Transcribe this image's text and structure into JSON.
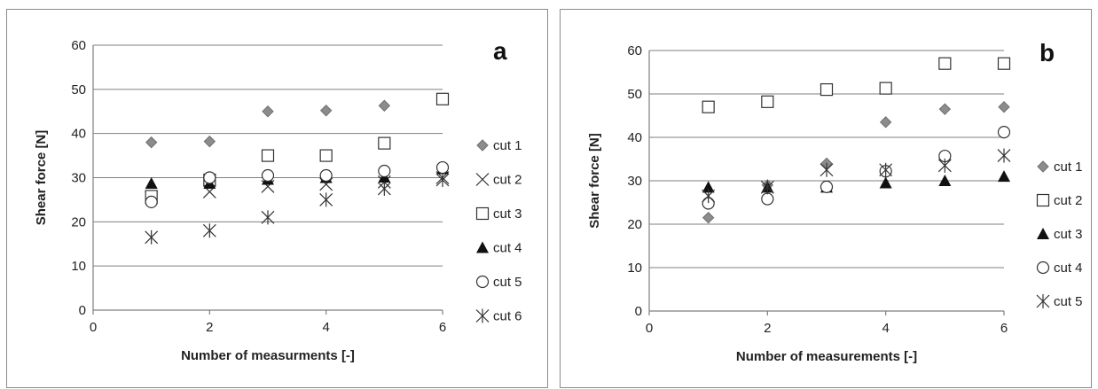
{
  "chart_data": [
    {
      "type": "scatter",
      "panel_label": "a",
      "xlabel": "Number of measurments [-]",
      "ylabel": "Shear force [N]",
      "xlim": [
        0,
        6
      ],
      "ylim": [
        0,
        60
      ],
      "xticks": [
        0,
        2,
        4,
        6
      ],
      "yticks": [
        0,
        10,
        20,
        30,
        40,
        50,
        60
      ],
      "grid": "horizontal",
      "legend_position": "right",
      "x": [
        1,
        2,
        3,
        4,
        5,
        6
      ],
      "series": [
        {
          "name": "cut 1",
          "marker": "diamond-filled",
          "color": "#8c8c8c",
          "values": [
            38,
            38.2,
            45,
            45.2,
            46.3,
            null
          ]
        },
        {
          "name": "cut 2",
          "marker": "x",
          "color": "#333333",
          "values": [
            25.5,
            26.8,
            28,
            28.5,
            29,
            30
          ]
        },
        {
          "name": "cut 3",
          "marker": "square-open",
          "color": "#333333",
          "values": [
            25.8,
            29.5,
            35,
            35,
            37.8,
            47.8
          ]
        },
        {
          "name": "cut 4",
          "marker": "triangle-filled",
          "color": "#111111",
          "values": [
            28.7,
            28.7,
            29.6,
            30,
            30.1,
            32
          ]
        },
        {
          "name": "cut 5",
          "marker": "circle-open",
          "color": "#333333",
          "values": [
            24.5,
            30,
            30.5,
            30.5,
            31.5,
            32.3
          ]
        },
        {
          "name": "cut 6",
          "marker": "asterisk",
          "color": "#333333",
          "values": [
            16.5,
            18,
            21,
            25,
            27.5,
            29.5
          ]
        }
      ]
    },
    {
      "type": "scatter",
      "panel_label": "b",
      "xlabel": "Number of measurements [-]",
      "ylabel": "Shear force [N]",
      "xlim": [
        0,
        6
      ],
      "ylim": [
        0,
        60
      ],
      "xticks": [
        0,
        2,
        4,
        6
      ],
      "yticks": [
        0,
        10,
        20,
        30,
        40,
        50,
        60
      ],
      "grid": "horizontal",
      "legend_position": "right",
      "x": [
        1,
        2,
        3,
        4,
        5,
        6
      ],
      "series": [
        {
          "name": "cut 1",
          "marker": "diamond-filled",
          "color": "#8c8c8c",
          "values": [
            21.5,
            29,
            34,
            43.5,
            46.5,
            47
          ]
        },
        {
          "name": "cut 2",
          "marker": "square-open",
          "color": "#333333",
          "values": [
            47,
            48.2,
            51,
            51.3,
            57,
            57
          ]
        },
        {
          "name": "cut 3",
          "marker": "triangle-filled",
          "color": "#111111",
          "values": [
            28.5,
            28.5,
            28.5,
            29.5,
            30,
            31
          ]
        },
        {
          "name": "cut 4",
          "marker": "circle-open",
          "color": "#333333",
          "values": [
            24.8,
            25.8,
            28.6,
            32.2,
            35.7,
            41.2
          ]
        },
        {
          "name": "cut 5",
          "marker": "asterisk",
          "color": "#333333",
          "values": [
            26.5,
            28.5,
            32.5,
            32.5,
            33.5,
            35.8
          ]
        }
      ]
    }
  ]
}
